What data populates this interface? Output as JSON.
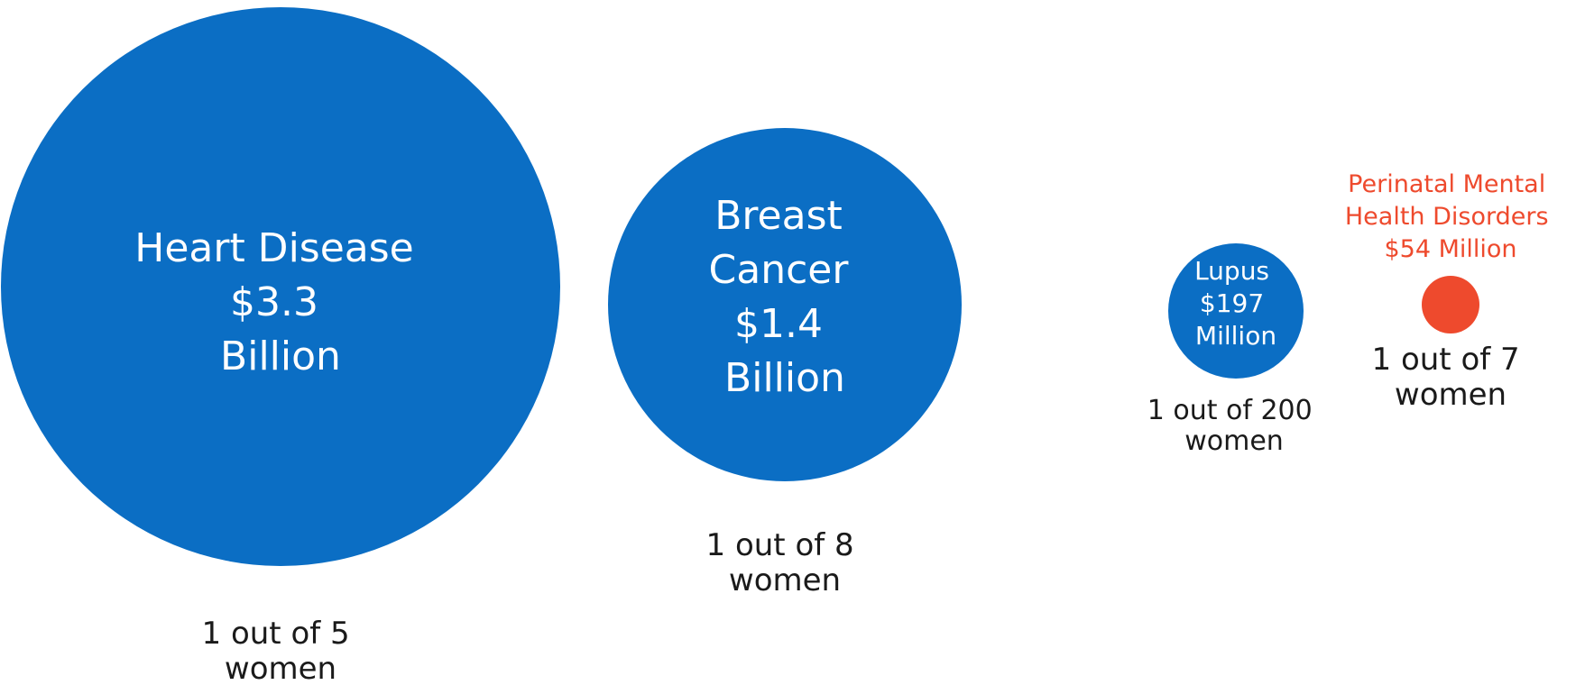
{
  "colors": {
    "blue": "#0b6ec4",
    "red": "#ee4a2d",
    "text": "#1a1a1a",
    "background": "#ffffff"
  },
  "chart_data": {
    "type": "bubble",
    "title": "",
    "items": [
      {
        "id": "heart",
        "condition": "Heart Disease",
        "label_lines": [
          "Heart Disease",
          "$3.3",
          "Billion"
        ],
        "amount": "$3.3 Billion",
        "value_millions": 3300,
        "prevalence_lines": [
          "1 out of 5",
          "women"
        ],
        "prevalence": "1 out of 5 women",
        "color": "#0b6ec4",
        "label_position": "inside"
      },
      {
        "id": "breast",
        "condition": "Breast Cancer",
        "label_lines": [
          "Breast",
          "Cancer",
          "$1.4",
          "Billion"
        ],
        "amount": "$1.4 Billion",
        "value_millions": 1400,
        "prevalence_lines": [
          "1 out of 8",
          "women"
        ],
        "prevalence": "1 out of 8 women",
        "color": "#0b6ec4",
        "label_position": "inside"
      },
      {
        "id": "lupus",
        "condition": "Lupus",
        "label_lines": [
          "Lupus",
          "$197",
          "Million"
        ],
        "amount": "$197 Million",
        "value_millions": 197,
        "prevalence_lines": [
          "1 out of 200",
          "women"
        ],
        "prevalence": "1 out of 200 women",
        "color": "#0b6ec4",
        "label_position": "inside"
      },
      {
        "id": "perinatal",
        "condition": "Perinatal Mental Health Disorders",
        "label_lines": [
          "Perinatal Mental",
          "Health Disorders",
          "$54 Million"
        ],
        "amount": "$54 Million",
        "value_millions": 54,
        "prevalence_lines": [
          "1 out of 7",
          "women"
        ],
        "prevalence": "1 out of 7 women",
        "color": "#ee4a2d",
        "label_position": "above"
      }
    ]
  }
}
